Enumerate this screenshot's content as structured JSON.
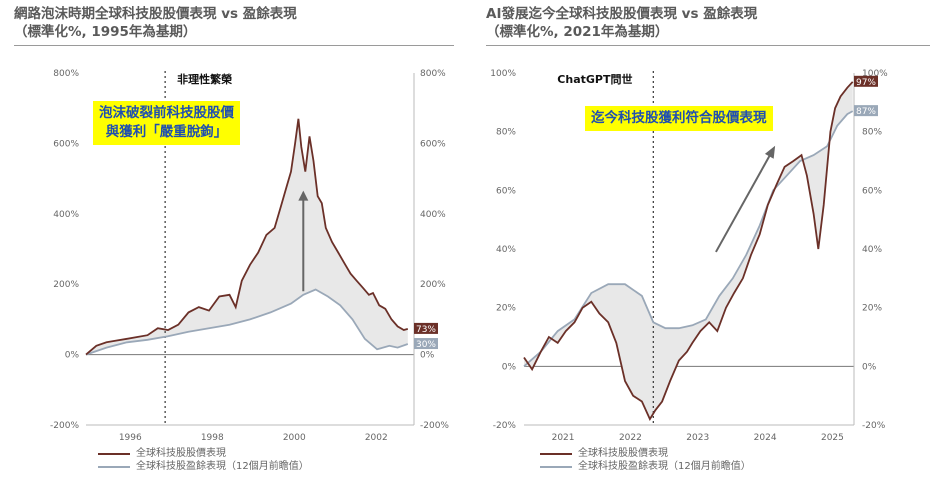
{
  "colors": {
    "price": "#6b3028",
    "earnings": "#9aa8b8",
    "fill": "#e8e8e8",
    "callout_bg": "#ffff00",
    "callout_text": "#1f4fb0"
  },
  "left": {
    "title_line1": "網路泡沫時期全球科技股股價表現 vs 盈餘表現",
    "title_line2": "（標準化%, 1995年為基期）",
    "event_label": "非理性繁榮",
    "callout_line1": "泡沫破裂前科技股股價",
    "callout_line2": "與獲利「嚴重脫鉤」",
    "end_label_price": "73%",
    "end_label_earnings": "30%",
    "legend_price": "全球科技股股價表現",
    "legend_earnings": "全球科技股盈餘表現（12個月前瞻值）"
  },
  "right": {
    "title_line1": "AI發展迄今全球科技股股價表現 vs 盈餘表現",
    "title_line2": "（標準化%, 2021年為基期）",
    "event_label": "ChatGPT問世",
    "callout_line1": "迄今科技股獲利符合股價表現",
    "end_label_price": "97%",
    "end_label_earnings": "87%",
    "legend_price": "全球科技股股價表現",
    "legend_earnings": "全球科技股盈餘表現（12個月前瞻值）"
  },
  "chart_data": [
    {
      "type": "line",
      "title": "網路泡沫時期全球科技股股價表現 vs 盈餘表現",
      "subtitle": "（標準化%, 1995年為基期）",
      "x_ticks": [
        "1996",
        "1998",
        "2000",
        "2002"
      ],
      "xlim": [
        1995,
        2003
      ],
      "y_ticks_left": [
        "800%",
        "600%",
        "400%",
        "200%",
        "0%",
        "-200%"
      ],
      "y_ticks_right": [
        "800%",
        "600%",
        "400%",
        "200%",
        "0%",
        "-200%"
      ],
      "ylim": [
        -200,
        800
      ],
      "event": {
        "x": 1996.93,
        "label": "非理性繁榮"
      },
      "series": [
        {
          "name": "全球科技股股價表現",
          "x": [
            1995.0,
            1995.25,
            1995.5,
            1995.75,
            1996.0,
            1996.25,
            1996.5,
            1996.75,
            1997.0,
            1997.25,
            1997.5,
            1997.75,
            1998.0,
            1998.25,
            1998.5,
            1998.65,
            1998.8,
            1999.0,
            1999.2,
            1999.4,
            1999.6,
            1999.75,
            1999.9,
            2000.0,
            2000.1,
            2000.18,
            2000.25,
            2000.35,
            2000.45,
            2000.55,
            2000.65,
            2000.75,
            2000.85,
            2001.0,
            2001.15,
            2001.3,
            2001.45,
            2001.6,
            2001.75,
            2001.9,
            2002.0,
            2002.15,
            2002.3,
            2002.45,
            2002.6,
            2002.75,
            2002.85
          ],
          "values": [
            0,
            25,
            35,
            40,
            45,
            50,
            55,
            75,
            70,
            85,
            120,
            135,
            125,
            165,
            170,
            135,
            210,
            255,
            290,
            340,
            360,
            420,
            480,
            520,
            600,
            670,
            590,
            520,
            620,
            550,
            450,
            430,
            360,
            320,
            290,
            260,
            230,
            210,
            190,
            170,
            175,
            140,
            130,
            100,
            80,
            70,
            73
          ]
        },
        {
          "name": "全球科技股盈餘表現（12個月前瞻值）",
          "x": [
            1995.0,
            1995.5,
            1996.0,
            1996.5,
            1997.0,
            1997.5,
            1998.0,
            1998.5,
            1999.0,
            1999.5,
            2000.0,
            2000.3,
            2000.6,
            2000.9,
            2001.2,
            2001.5,
            2001.8,
            2002.1,
            2002.4,
            2002.6,
            2002.85
          ],
          "values": [
            0,
            20,
            35,
            42,
            52,
            65,
            75,
            85,
            100,
            120,
            145,
            170,
            185,
            165,
            140,
            100,
            45,
            15,
            25,
            20,
            30
          ]
        }
      ]
    },
    {
      "type": "line",
      "title": "AI發展迄今全球科技股股價表現 vs 盈餘表現",
      "subtitle": "（標準化%, 2021年為基期）",
      "x_ticks": [
        "2021",
        "2022",
        "2023",
        "2024",
        "2025"
      ],
      "xlim": [
        2020.5,
        2025.4
      ],
      "y_ticks_left": [
        "100%",
        "80%",
        "60%",
        "40%",
        "20%",
        "0%",
        "-20%"
      ],
      "y_ticks_right": [
        "100%",
        "80%",
        "60%",
        "40%",
        "20%",
        "0%",
        "-20%"
      ],
      "ylim": [
        -20,
        100
      ],
      "event": {
        "x": 2022.42,
        "label": "ChatGPT問世"
      },
      "series": [
        {
          "name": "全球科技股股價表現",
          "x": [
            2020.5,
            2020.62,
            2020.75,
            2020.87,
            2021.0,
            2021.12,
            2021.25,
            2021.37,
            2021.5,
            2021.62,
            2021.75,
            2021.87,
            2022.0,
            2022.12,
            2022.25,
            2022.37,
            2022.45,
            2022.55,
            2022.67,
            2022.8,
            2022.92,
            2023.0,
            2023.12,
            2023.25,
            2023.37,
            2023.5,
            2023.62,
            2023.75,
            2023.87,
            2024.0,
            2024.12,
            2024.25,
            2024.37,
            2024.5,
            2024.62,
            2024.7,
            2024.8,
            2024.87,
            2024.95,
            2025.05,
            2025.12,
            2025.2,
            2025.3,
            2025.38
          ],
          "values": [
            3,
            -1,
            5,
            10,
            8,
            12,
            15,
            20,
            22,
            18,
            15,
            8,
            -5,
            -10,
            -12,
            -18,
            -15,
            -12,
            -5,
            2,
            5,
            8,
            12,
            15,
            12,
            20,
            25,
            30,
            38,
            45,
            55,
            62,
            68,
            70,
            72,
            65,
            52,
            40,
            55,
            80,
            88,
            92,
            95,
            97
          ]
        },
        {
          "name": "全球科技股盈餘表現（12個月前瞻值）",
          "x": [
            2020.5,
            2020.75,
            2021.0,
            2021.25,
            2021.5,
            2021.75,
            2022.0,
            2022.25,
            2022.42,
            2022.6,
            2022.8,
            2023.0,
            2023.2,
            2023.4,
            2023.6,
            2023.8,
            2024.0,
            2024.2,
            2024.4,
            2024.6,
            2024.8,
            2025.0,
            2025.15,
            2025.3,
            2025.38
          ],
          "values": [
            0,
            5,
            12,
            16,
            25,
            28,
            28,
            24,
            15,
            13,
            13,
            14,
            16,
            24,
            30,
            38,
            48,
            60,
            65,
            70,
            72,
            75,
            82,
            86,
            87
          ]
        }
      ]
    }
  ]
}
